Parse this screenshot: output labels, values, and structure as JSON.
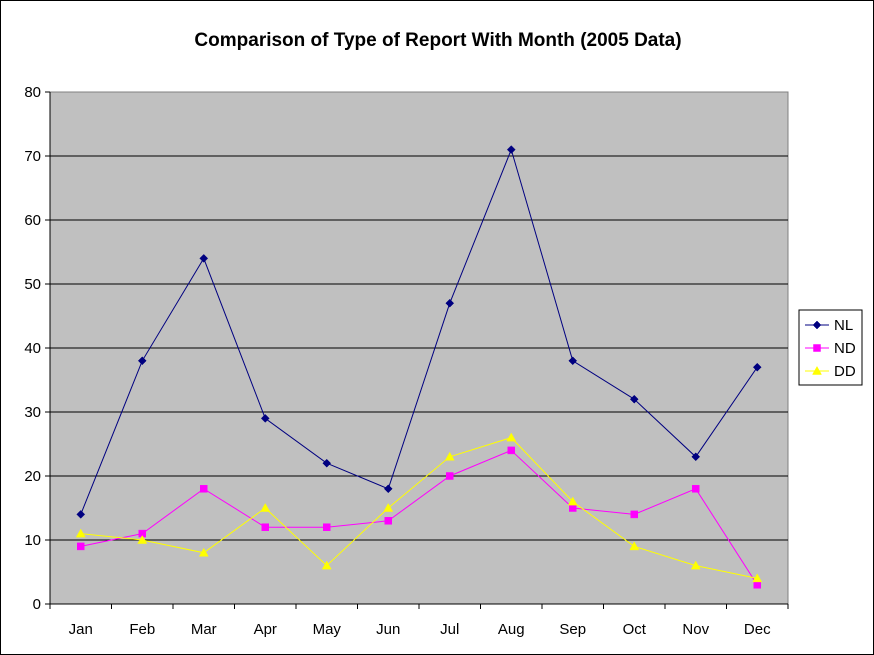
{
  "chart_data": {
    "type": "line",
    "title": "Comparison of Type of Report With Month (2005 Data)",
    "xlabel": "",
    "ylabel": "",
    "categories": [
      "Jan",
      "Feb",
      "Mar",
      "Apr",
      "May",
      "Jun",
      "Jul",
      "Aug",
      "Sep",
      "Oct",
      "Nov",
      "Dec"
    ],
    "ylim": [
      0,
      80
    ],
    "yticks": [
      0,
      10,
      20,
      30,
      40,
      50,
      60,
      70,
      80
    ],
    "grid": "horizontal",
    "legend_position": "right",
    "plot_background": "#C0C0C0",
    "series": [
      {
        "name": "NL",
        "color": "#000080",
        "marker": "diamond",
        "values": [
          14,
          38,
          54,
          29,
          22,
          18,
          47,
          71,
          38,
          32,
          23,
          37
        ]
      },
      {
        "name": "ND",
        "color": "#FF00FF",
        "marker": "square",
        "values": [
          9,
          11,
          18,
          12,
          12,
          13,
          20,
          24,
          15,
          14,
          18,
          3
        ]
      },
      {
        "name": "DD",
        "color": "#FFFF00",
        "marker": "triangle",
        "values": [
          11,
          10,
          8,
          15,
          6,
          15,
          23,
          26,
          16,
          9,
          6,
          4
        ]
      }
    ]
  }
}
